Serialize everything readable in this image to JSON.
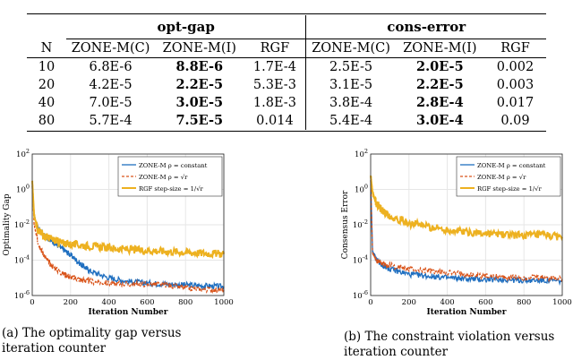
{
  "table": {
    "groups": [
      "opt-gap",
      "cons-error"
    ],
    "columns": [
      "N",
      "ZONE-M(C)",
      "ZONE-M(I)",
      "RGF",
      "ZONE-M(C)",
      "ZONE-M(I)",
      "RGF"
    ],
    "rows": [
      {
        "n": "10",
        "c1": "6.8E-6",
        "i1": "8.8E-6",
        "r1": "1.7E-4",
        "c2": "2.5E-5",
        "i2": "2.0E-5",
        "r2": "0.002"
      },
      {
        "n": "20",
        "c1": "4.2E-5",
        "i1": "2.2E-5",
        "r1": "5.3E-3",
        "c2": "3.1E-5",
        "i2": "2.2E-5",
        "r2": "0.003"
      },
      {
        "n": "40",
        "c1": "7.0E-5",
        "i1": "3.0E-5",
        "r1": "1.8E-3",
        "c2": "3.8E-4",
        "i2": "2.8E-4",
        "r2": "0.017"
      },
      {
        "n": "80",
        "c1": "5.7E-4",
        "i1": "7.5E-5",
        "r1": "0.014",
        "c2": "5.4E-4",
        "i2": "3.0E-4",
        "r2": "0.09"
      }
    ]
  },
  "colors": {
    "blue": "#1f6fc0",
    "red": "#d9541a",
    "gold": "#edb120"
  },
  "chart_data": [
    {
      "type": "line",
      "xlabel": "Iteration Number",
      "ylabel": "Optimality Gap",
      "xlim": [
        0,
        1000
      ],
      "ylim_log10": [
        -6,
        2
      ],
      "xticks": [
        "0",
        "200",
        "400",
        "600",
        "800",
        "1000"
      ],
      "yticks": [
        "10^-6",
        "10^-4",
        "10^-2",
        "10^0",
        "10^2"
      ],
      "legend_position": "top-right",
      "series": [
        {
          "name": "ZONE-M ρ = constant",
          "style": "solid",
          "x": [
            0,
            10,
            30,
            60,
            100,
            150,
            200,
            250,
            300,
            400,
            500,
            600,
            700,
            800,
            900,
            1000
          ],
          "y_log10": [
            0.2,
            -1.5,
            -2.2,
            -2.6,
            -2.9,
            -3.3,
            -3.7,
            -4.2,
            -4.6,
            -5.0,
            -5.2,
            -5.3,
            -5.35,
            -5.4,
            -5.45,
            -5.5
          ]
        },
        {
          "name": "ZONE-M ρ = √r",
          "style": "dashed",
          "x": [
            0,
            10,
            30,
            60,
            100,
            150,
            200,
            250,
            300,
            400,
            500,
            600,
            700,
            800,
            900,
            1000
          ],
          "y_log10": [
            0.2,
            -2.0,
            -3.0,
            -3.7,
            -4.3,
            -4.7,
            -4.95,
            -5.1,
            -5.2,
            -5.3,
            -5.35,
            -5.35,
            -5.4,
            -5.6,
            -5.65,
            -5.7
          ]
        },
        {
          "name": "RGF step-size = 1/√r",
          "style": "solid-thick",
          "x": [
            0,
            10,
            30,
            60,
            100,
            150,
            200,
            300,
            400,
            500,
            600,
            700,
            800,
            900,
            1000
          ],
          "y_log10": [
            0.5,
            -1.5,
            -2.3,
            -2.6,
            -2.8,
            -3.0,
            -3.1,
            -3.2,
            -3.3,
            -3.4,
            -3.45,
            -3.5,
            -3.55,
            -3.6,
            -3.65
          ]
        }
      ]
    },
    {
      "type": "line",
      "xlabel": "Iteration Number",
      "ylabel": "Consensus Error",
      "xlim": [
        0,
        1000
      ],
      "ylim_log10": [
        -6,
        2
      ],
      "xticks": [
        "0",
        "200",
        "400",
        "600",
        "800",
        "1000"
      ],
      "yticks": [
        "10^-6",
        "10^-4",
        "10^-2",
        "10^0",
        "10^2"
      ],
      "legend_position": "top-right",
      "series": [
        {
          "name": "ZONE-M ρ = constant",
          "style": "solid",
          "x": [
            0,
            10,
            30,
            60,
            100,
            200,
            300,
            400,
            500,
            600,
            700,
            800,
            900,
            1000
          ],
          "y_log10": [
            0.5,
            -3.5,
            -4.0,
            -4.3,
            -4.5,
            -4.8,
            -4.9,
            -5.0,
            -5.05,
            -5.1,
            -5.1,
            -5.15,
            -5.15,
            -5.2
          ]
        },
        {
          "name": "ZONE-M ρ = √r",
          "style": "dashed",
          "x": [
            0,
            10,
            30,
            60,
            100,
            200,
            300,
            400,
            500,
            600,
            700,
            800,
            900,
            1000
          ],
          "y_log10": [
            0.5,
            -3.6,
            -4.0,
            -4.2,
            -4.3,
            -4.5,
            -4.6,
            -4.7,
            -4.8,
            -4.9,
            -4.95,
            -5.0,
            -5.0,
            -5.05
          ]
        },
        {
          "name": "RGF step-size = 1/√r",
          "style": "solid-thick",
          "x": [
            0,
            10,
            30,
            60,
            100,
            200,
            300,
            400,
            500,
            600,
            700,
            800,
            900,
            1000
          ],
          "y_log10": [
            0.8,
            -0.2,
            -0.8,
            -1.2,
            -1.5,
            -1.9,
            -2.1,
            -2.3,
            -2.4,
            -2.5,
            -2.55,
            -2.6,
            -2.6,
            -2.7
          ]
        }
      ]
    }
  ],
  "captions": [
    {
      "label": "(a)",
      "text": "The optimality gap versus iteration counter"
    },
    {
      "label": "(b)",
      "text": "The constraint violation versus iteration counter"
    }
  ]
}
